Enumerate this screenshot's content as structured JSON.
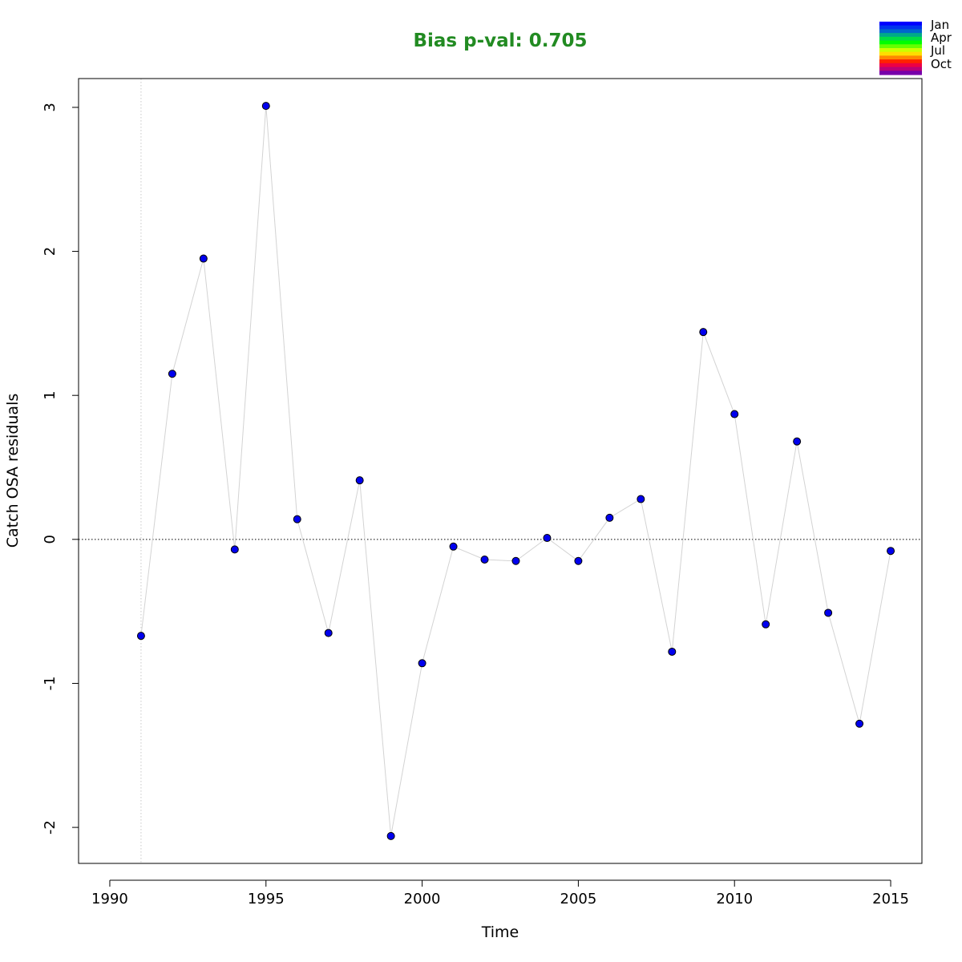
{
  "chart_data": {
    "type": "scatter",
    "title": "Bias p-val: 0.705",
    "title_color": "#228B22",
    "xlabel": "Time",
    "ylabel": "Catch OSA residuals",
    "xlim": [
      1989.0,
      2016.0
    ],
    "ylim": [
      -2.25,
      3.2
    ],
    "x_ticks": [
      1990,
      1995,
      2000,
      2005,
      2010,
      2015
    ],
    "y_ticks": [
      -2,
      -1,
      0,
      1,
      2,
      3
    ],
    "reference_hline": 0,
    "reference_vline": 1991,
    "point_color": "#0000EE",
    "line_color": "#D3D3D3",
    "series": [
      {
        "x": [
          1991,
          1992,
          1993,
          1994,
          1995,
          1996,
          1997,
          1998,
          1999,
          2000,
          2001,
          2002,
          2003,
          2004,
          2005,
          2006,
          2007,
          2008,
          2009,
          2010,
          2011,
          2012,
          2013,
          2014,
          2015
        ],
        "values": [
          -0.67,
          1.15,
          1.95,
          -0.07,
          3.01,
          0.14,
          -0.65,
          0.41,
          -2.06,
          -0.86,
          -0.05,
          -0.14,
          -0.15,
          0.01,
          -0.15,
          0.15,
          0.28,
          -0.78,
          1.44,
          0.87,
          -0.59,
          0.68,
          -0.51,
          -1.28,
          -0.08
        ]
      }
    ],
    "legend": {
      "position": "top-right",
      "labels": [
        "Jan",
        "Apr",
        "Jul",
        "Oct"
      ],
      "colors": [
        "#0000FF",
        "#0033EE",
        "#0066CC",
        "#00AA88",
        "#00DD44",
        "#00FF00",
        "#66FF00",
        "#CCFF00",
        "#FFDD00",
        "#FF8800",
        "#FF2200",
        "#EE0044",
        "#BB0077",
        "#7700AA"
      ]
    }
  }
}
